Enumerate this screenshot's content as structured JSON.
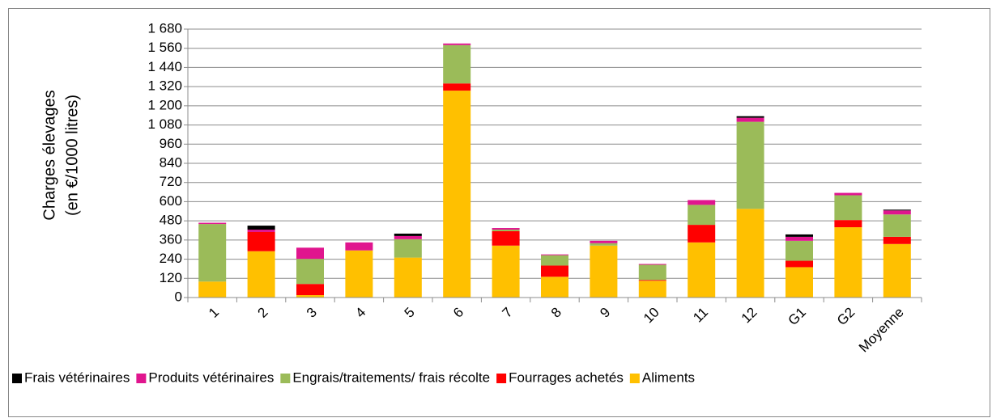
{
  "chart_data": {
    "type": "stacked_bar",
    "y_label": [
      "Charges  élevages",
      "(en €/1000 litres)"
    ],
    "categories": [
      "1",
      "2",
      "3",
      "4",
      "5",
      "6",
      "7",
      "8",
      "9",
      "10",
      "11",
      "12",
      "G1",
      "G2",
      "Moyenne"
    ],
    "series": [
      {
        "name": "Aliments",
        "color": "#FFC000",
        "values": [
          100,
          290,
          15,
          295,
          250,
          1295,
          325,
          130,
          325,
          105,
          345,
          555,
          190,
          440,
          335
        ]
      },
      {
        "name": "Fourrages achetés",
        "color": "#FF0000",
        "values": [
          0,
          120,
          70,
          0,
          0,
          45,
          90,
          70,
          0,
          5,
          110,
          0,
          40,
          45,
          45
        ]
      },
      {
        "name": "Engrais/traitements/ frais récolte",
        "color": "#9BBB59",
        "values": [
          360,
          0,
          157,
          0,
          115,
          240,
          10,
          65,
          15,
          95,
          125,
          545,
          125,
          155,
          140
        ]
      },
      {
        "name": "Produits vétérinaires",
        "color": "#E0158E",
        "values": [
          8,
          15,
          70,
          50,
          20,
          10,
          10,
          5,
          15,
          5,
          30,
          25,
          25,
          15,
          25
        ]
      },
      {
        "name": "Frais vétérinaires",
        "color": "#000000",
        "values": [
          0,
          25,
          0,
          0,
          15,
          0,
          0,
          0,
          0,
          0,
          0,
          10,
          15,
          0,
          5
        ]
      }
    ],
    "ylim": [
      0,
      1680
    ],
    "yticks": [
      0,
      120,
      240,
      360,
      480,
      600,
      720,
      840,
      960,
      {
        "value": 1080,
        "label": "1 080"
      },
      {
        "value": 1200,
        "label": "1 200"
      },
      {
        "value": 1320,
        "label": "1 320"
      },
      {
        "value": 1440,
        "label": "1 440"
      },
      {
        "value": 1560,
        "label": "1 560"
      },
      {
        "value": 1680,
        "label": "1 680"
      }
    ],
    "grid": true,
    "legend": "bottom"
  }
}
